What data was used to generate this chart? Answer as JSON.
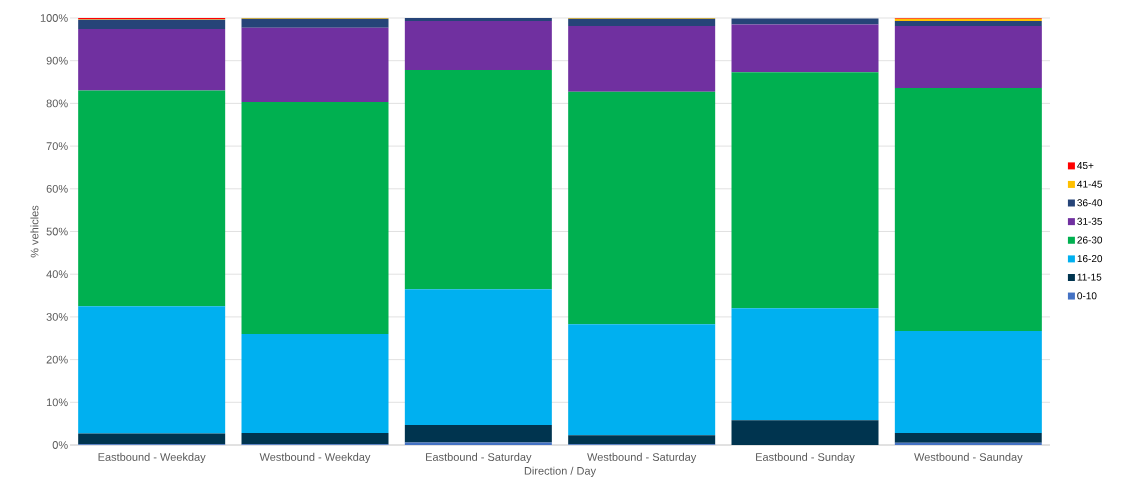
{
  "chart_data": {
    "type": "bar",
    "stacked": true,
    "xlabel": "Direction / Day",
    "ylabel": "% vehicles",
    "categories": [
      "Eastbound - Weekday",
      "Westbound - Weekday",
      "Eastbound - Saturday",
      "Westbound - Saturday",
      "Eastbound - Sunday",
      "Westbound - Saunday"
    ],
    "series": [
      {
        "name": "0-10",
        "color": "#4472c4",
        "values": [
          0.2,
          0.2,
          0.6,
          0.2,
          null,
          0.5
        ]
      },
      {
        "name": "11-15",
        "color": "#00344f",
        "values": [
          2.5,
          2.6,
          4.1,
          2.1,
          5.8,
          2.3
        ]
      },
      {
        "name": "16-20",
        "color": "#00b0f0",
        "values": [
          29.8,
          23.2,
          31.8,
          26.0,
          26.2,
          23.9
        ]
      },
      {
        "name": "26-30",
        "color": "#00b050",
        "values": [
          50.5,
          54.3,
          51.3,
          54.4,
          55.3,
          56.9
        ]
      },
      {
        "name": "31-35",
        "color": "#7030a0",
        "values": [
          14.4,
          17.4,
          11.5,
          15.4,
          11.2,
          14.5
        ]
      },
      {
        "name": "36-40",
        "color": "#264478",
        "values": [
          2.2,
          2.1,
          0.7,
          1.7,
          1.4,
          1.2
        ]
      },
      {
        "name": "41-45",
        "color": "#ffc000",
        "values": [
          0.1,
          0.2,
          0,
          0.2,
          0,
          0.5
        ]
      },
      {
        "name": "45+",
        "color": "#ff0000",
        "values": [
          0.3,
          0,
          0,
          0,
          0,
          0.2
        ]
      }
    ],
    "ylim": [
      0,
      100
    ],
    "yticks": [
      {
        "value": 0,
        "label": "0%"
      },
      {
        "value": 10,
        "label": "10%"
      },
      {
        "value": 20,
        "label": "20%"
      },
      {
        "value": 30,
        "label": "30%"
      },
      {
        "value": 40,
        "label": "40%"
      },
      {
        "value": 50,
        "label": "50%"
      },
      {
        "value": 60,
        "label": "60%"
      },
      {
        "value": 70,
        "label": "70%"
      },
      {
        "value": 80,
        "label": "80%"
      },
      {
        "value": 90,
        "label": "90%"
      },
      {
        "value": 100,
        "label": "100%"
      }
    ],
    "grid": "y",
    "legend": "right"
  }
}
